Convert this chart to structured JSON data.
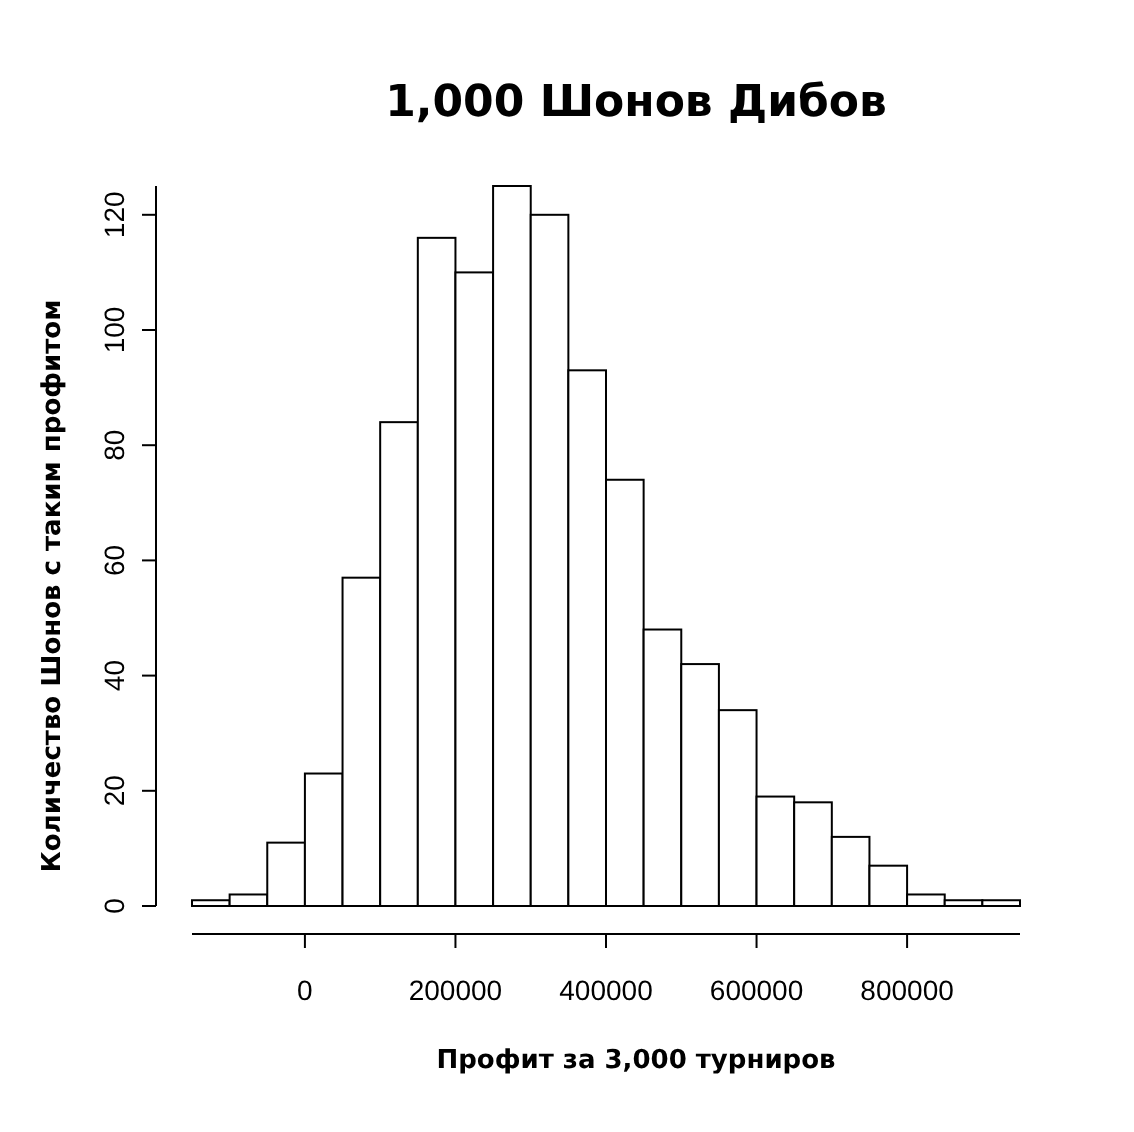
{
  "chart_data": {
    "type": "histogram",
    "title": "1,000 Шонов Дибов",
    "xlabel": "Профит за 3,000 турниров",
    "ylabel": "Количество Шонов с таким профитом",
    "bins": [
      -150000,
      -100000,
      -50000,
      0,
      50000,
      100000,
      150000,
      200000,
      250000,
      300000,
      350000,
      400000,
      450000,
      500000,
      550000,
      600000,
      650000,
      700000,
      750000,
      800000,
      850000,
      900000,
      950000
    ],
    "values": [
      1,
      2,
      11,
      23,
      57,
      84,
      116,
      110,
      125,
      120,
      93,
      74,
      48,
      42,
      34,
      19,
      18,
      12,
      7,
      2,
      1,
      1
    ],
    "color": "#ffffff",
    "xlim": [
      -150000,
      950000
    ],
    "xticks": [
      0,
      200000,
      400000,
      600000,
      800000
    ],
    "ylim": [
      0,
      125
    ],
    "yticks": [
      0,
      20,
      40,
      60,
      80,
      100,
      120
    ],
    "grid": false
  }
}
